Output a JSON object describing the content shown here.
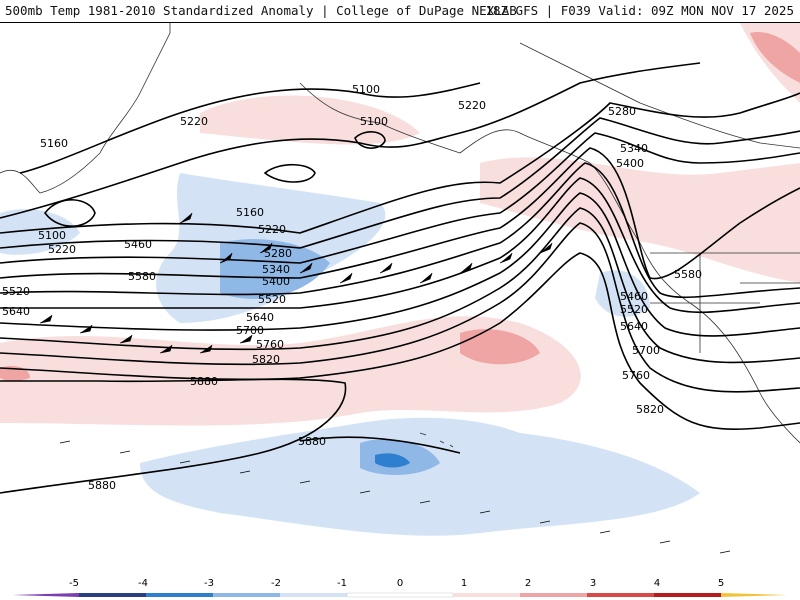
{
  "header": {
    "title_left": "500mb Temp 1981-2010 Standardized Anomaly | College of DuPage NEXLAB",
    "title_right": "18Z GFS | F039 Valid: 09Z MON NOV 17 2025"
  },
  "colors": {
    "contour": "#000000",
    "coast": "#333333",
    "anom": {
      "-5": "#7a3fb0",
      "-4": "#2a3f82",
      "-3": "#2f7fd0",
      "-2": "#8fb8e6",
      "-1": "#d3e3f5",
      "1": "#f9dede",
      "2": "#f0a5a5",
      "3": "#d84a4a",
      "4": "#b51c1c",
      "5": "#f2c33a"
    }
  },
  "contour_labels": [
    "5100",
    "5100",
    "5160",
    "5220",
    "5100",
    "5220",
    "5160",
    "5280",
    "5220",
    "5220",
    "5340",
    "5400",
    "5460",
    "5280",
    "5340",
    "5400",
    "5520",
    "5580",
    "5580",
    "5520",
    "5640",
    "5640",
    "5700",
    "5760",
    "5820",
    "5880",
    "5880",
    "5880",
    "5460",
    "5520",
    "5640",
    "5700",
    "5760",
    "5820"
  ],
  "colorbar": {
    "ticks": [
      "-5",
      "-4",
      "-3",
      "-2",
      "-1",
      "0",
      "1",
      "2",
      "3",
      "4",
      "5"
    ]
  }
}
